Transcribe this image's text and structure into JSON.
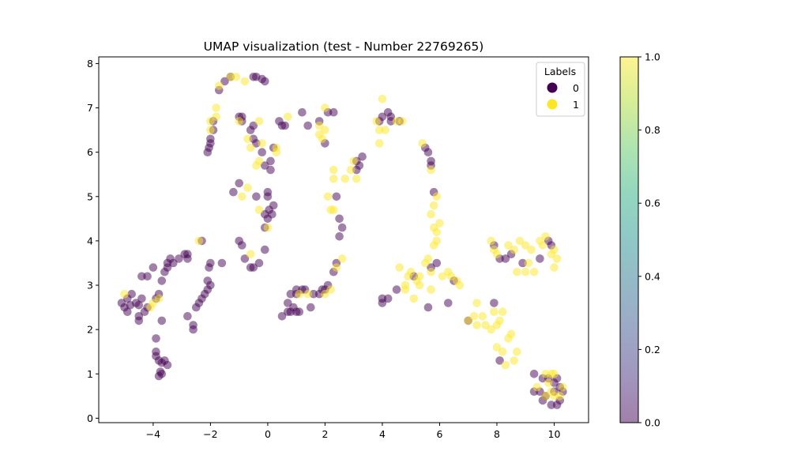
{
  "chart_data": {
    "type": "scatter",
    "title": "UMAP visualization (test - Number 22769265)",
    "xlabel": "",
    "ylabel": "",
    "xlim": [
      -5.9,
      11.2
    ],
    "ylim": [
      -0.1,
      8.15
    ],
    "x_ticks": [
      "−4",
      "−2",
      "0",
      "2",
      "4",
      "6",
      "8",
      "10"
    ],
    "y_ticks": [
      "0",
      "1",
      "2",
      "3",
      "4",
      "5",
      "6",
      "7",
      "8"
    ],
    "legend": {
      "title": "Labels",
      "placement": "top-right",
      "entries": [
        {
          "label": "0",
          "color": "#440154"
        },
        {
          "label": "1",
          "color": "#fde725"
        }
      ]
    },
    "colorbar": {
      "range": [
        0.0,
        1.0
      ],
      "ticks": [
        "0.0",
        "0.2",
        "0.4",
        "0.6",
        "0.8",
        "1.0"
      ],
      "colormap": "viridis",
      "alpha": 0.5
    },
    "series": [
      {
        "name": "0",
        "color": "#440154",
        "points": [
          [
            -5.1,
            2.6
          ],
          [
            -5.0,
            2.5
          ],
          [
            -4.9,
            2.4
          ],
          [
            -4.9,
            2.7
          ],
          [
            -4.8,
            2.55
          ],
          [
            -4.75,
            2.8
          ],
          [
            -4.6,
            2.6
          ],
          [
            -4.5,
            2.55
          ],
          [
            -4.5,
            2.3
          ],
          [
            -4.5,
            2.2
          ],
          [
            -4.4,
            2.7
          ],
          [
            -4.3,
            2.4
          ],
          [
            -4.2,
            2.5
          ],
          [
            -4.4,
            3.2
          ],
          [
            -4.2,
            3.2
          ],
          [
            -4.0,
            3.4
          ],
          [
            -3.9,
            2.7
          ],
          [
            -3.8,
            2.8
          ],
          [
            -3.7,
            2.2
          ],
          [
            -3.7,
            3.1
          ],
          [
            -3.6,
            3.3
          ],
          [
            -3.5,
            3.4
          ],
          [
            -3.5,
            3.5
          ],
          [
            -3.4,
            3.6
          ],
          [
            -3.3,
            3.5
          ],
          [
            -3.1,
            3.6
          ],
          [
            -2.9,
            3.7
          ],
          [
            -2.8,
            3.7
          ],
          [
            -2.8,
            3.6
          ],
          [
            -2.8,
            2.3
          ],
          [
            -2.6,
            2.1
          ],
          [
            -2.6,
            2.0
          ],
          [
            -2.5,
            2.5
          ],
          [
            -2.4,
            2.6
          ],
          [
            -2.3,
            2.7
          ],
          [
            -2.2,
            2.8
          ],
          [
            -2.1,
            2.9
          ],
          [
            -2.1,
            3.1
          ],
          [
            -2.05,
            3.4
          ],
          [
            -2.0,
            3.5
          ],
          [
            -2.0,
            3.0
          ],
          [
            -3.9,
            1.8
          ],
          [
            -3.9,
            1.5
          ],
          [
            -3.9,
            1.4
          ],
          [
            -3.8,
            1.3
          ],
          [
            -3.7,
            1.25
          ],
          [
            -3.6,
            1.3
          ],
          [
            -3.5,
            1.2
          ],
          [
            -3.7,
            1.0
          ],
          [
            -3.8,
            0.95
          ],
          [
            -3.75,
            1.05
          ],
          [
            -2.3,
            4.0
          ],
          [
            -1.6,
            3.5
          ],
          [
            -1.2,
            5.1
          ],
          [
            -1.0,
            5.3
          ],
          [
            -1.0,
            4.0
          ],
          [
            -0.9,
            3.9
          ],
          [
            -0.8,
            3.6
          ],
          [
            -0.6,
            3.4
          ],
          [
            -0.5,
            3.4
          ],
          [
            -0.3,
            3.5
          ],
          [
            -0.1,
            3.8
          ],
          [
            -0.1,
            4.3
          ],
          [
            -0.4,
            5.0
          ],
          [
            -0.1,
            4.6
          ],
          [
            0.0,
            4.5
          ],
          [
            0.05,
            4.7
          ],
          [
            0.15,
            4.6
          ],
          [
            0.2,
            4.8
          ],
          [
            0.0,
            5.0
          ],
          [
            0.0,
            5.1
          ],
          [
            0.1,
            5.6
          ],
          [
            -0.1,
            5.7
          ],
          [
            -0.2,
            6.0
          ],
          [
            0.1,
            5.8
          ],
          [
            0.2,
            6.1
          ],
          [
            -0.6,
            6.5
          ],
          [
            -0.5,
            6.3
          ],
          [
            -0.4,
            6.2
          ],
          [
            -0.5,
            6.6
          ],
          [
            -0.9,
            6.7
          ],
          [
            -0.9,
            6.8
          ],
          [
            -1.0,
            6.8
          ],
          [
            -2.1,
            6.0
          ],
          [
            -2.05,
            6.1
          ],
          [
            -2.0,
            6.2
          ],
          [
            -2.0,
            6.3
          ],
          [
            -1.9,
            6.5
          ],
          [
            -1.9,
            6.7
          ],
          [
            -1.7,
            7.4
          ],
          [
            -1.5,
            7.6
          ],
          [
            -1.3,
            7.7
          ],
          [
            -0.5,
            7.7
          ],
          [
            -0.4,
            7.7
          ],
          [
            -0.2,
            7.65
          ],
          [
            -0.1,
            7.6
          ],
          [
            0.4,
            6.7
          ],
          [
            0.5,
            6.6
          ],
          [
            0.6,
            6.6
          ],
          [
            1.2,
            6.9
          ],
          [
            1.4,
            6.6
          ],
          [
            1.8,
            6.7
          ],
          [
            2.0,
            6.2
          ],
          [
            2.1,
            6.9
          ],
          [
            2.3,
            6.9
          ],
          [
            2.4,
            5.0
          ],
          [
            2.5,
            4.5
          ],
          [
            2.6,
            4.3
          ],
          [
            2.5,
            4.1
          ],
          [
            2.4,
            3.5
          ],
          [
            2.3,
            3.3
          ],
          [
            2.1,
            3.0
          ],
          [
            2.0,
            2.9
          ],
          [
            1.9,
            2.9
          ],
          [
            1.8,
            2.8
          ],
          [
            1.6,
            2.8
          ],
          [
            1.5,
            2.5
          ],
          [
            1.3,
            2.9
          ],
          [
            1.2,
            2.9
          ],
          [
            1.0,
            2.9
          ],
          [
            1.0,
            2.8
          ],
          [
            0.9,
            2.5
          ],
          [
            0.8,
            2.4
          ],
          [
            0.7,
            2.4
          ],
          [
            0.8,
            2.8
          ],
          [
            0.5,
            2.3
          ],
          [
            0.7,
            2.6
          ],
          [
            1.0,
            2.4
          ],
          [
            1.1,
            2.4
          ],
          [
            3.1,
            5.8
          ],
          [
            3.2,
            5.7
          ],
          [
            3.1,
            5.6
          ],
          [
            3.3,
            5.9
          ],
          [
            3.9,
            6.7
          ],
          [
            4.0,
            6.8
          ],
          [
            4.2,
            6.9
          ],
          [
            4.3,
            6.8
          ],
          [
            4.3,
            6.7
          ],
          [
            4.6,
            6.7
          ],
          [
            4.2,
            2.7
          ],
          [
            4.0,
            2.7
          ],
          [
            4.0,
            2.6
          ],
          [
            4.5,
            2.9
          ],
          [
            5.1,
            3.2
          ],
          [
            5.5,
            6.1
          ],
          [
            5.6,
            6.0
          ],
          [
            5.7,
            5.8
          ],
          [
            5.7,
            5.7
          ],
          [
            5.8,
            5.1
          ],
          [
            5.7,
            3.4
          ],
          [
            5.9,
            3.5
          ],
          [
            5.6,
            2.5
          ],
          [
            6.3,
            2.6
          ],
          [
            6.5,
            3.1
          ],
          [
            7.0,
            2.2
          ],
          [
            7.9,
            3.9
          ],
          [
            8.1,
            3.6
          ],
          [
            8.3,
            3.6
          ],
          [
            8.5,
            3.7
          ],
          [
            8.9,
            3.5
          ],
          [
            9.5,
            3.6
          ],
          [
            9.8,
            4.0
          ],
          [
            9.9,
            3.9
          ],
          [
            7.9,
            2.6
          ],
          [
            8.1,
            1.3
          ],
          [
            9.3,
            1.0
          ],
          [
            9.6,
            0.9
          ],
          [
            9.8,
            0.9
          ],
          [
            10.0,
            0.8
          ],
          [
            10.1,
            0.9
          ],
          [
            10.2,
            0.7
          ],
          [
            10.3,
            0.6
          ],
          [
            10.2,
            0.4
          ],
          [
            10.0,
            0.6
          ],
          [
            9.7,
            0.5
          ],
          [
            9.6,
            0.4
          ],
          [
            9.5,
            0.6
          ],
          [
            9.3,
            0.6
          ],
          [
            10.1,
            0.3
          ],
          [
            9.9,
            0.3
          ]
        ]
      },
      {
        "name": "1",
        "color": "#fde725",
        "points": [
          [
            -5.0,
            2.8
          ],
          [
            -4.1,
            2.5
          ],
          [
            -4.0,
            2.6
          ],
          [
            -3.8,
            2.7
          ],
          [
            -2.4,
            4.0
          ],
          [
            -1.8,
            7.0
          ],
          [
            -1.7,
            7.5
          ],
          [
            -1.1,
            7.7
          ],
          [
            -0.8,
            7.6
          ],
          [
            -1.0,
            6.7
          ],
          [
            -0.7,
            6.3
          ],
          [
            -0.6,
            6.1
          ],
          [
            -0.3,
            6.7
          ],
          [
            -0.2,
            6.2
          ],
          [
            -0.4,
            5.7
          ],
          [
            -0.3,
            5.8
          ],
          [
            -0.9,
            5.0
          ],
          [
            -0.7,
            5.2
          ],
          [
            -0.3,
            4.7
          ],
          [
            0.0,
            4.3
          ],
          [
            0.3,
            6.0
          ],
          [
            0.3,
            6.1
          ],
          [
            -2.0,
            6.5
          ],
          [
            -2.0,
            6.7
          ],
          [
            -1.8,
            6.8
          ],
          [
            -1.3,
            7.7
          ],
          [
            -0.6,
            3.7
          ],
          [
            0.7,
            6.8
          ],
          [
            1.8,
            6.6
          ],
          [
            1.8,
            6.4
          ],
          [
            1.9,
            6.3
          ],
          [
            2.0,
            6.5
          ],
          [
            2.0,
            7.0
          ],
          [
            2.1,
            5.0
          ],
          [
            2.3,
            5.6
          ],
          [
            2.3,
            5.4
          ],
          [
            2.2,
            4.7
          ],
          [
            2.3,
            4.7
          ],
          [
            2.6,
            3.6
          ],
          [
            2.4,
            3.4
          ],
          [
            2.0,
            2.8
          ],
          [
            2.2,
            2.9
          ],
          [
            1.1,
            2.8
          ],
          [
            1.4,
            2.8
          ],
          [
            2.7,
            5.4
          ],
          [
            2.9,
            5.6
          ],
          [
            3.1,
            5.4
          ],
          [
            3.0,
            5.8
          ],
          [
            3.8,
            6.7
          ],
          [
            3.9,
            6.5
          ],
          [
            4.0,
            7.2
          ],
          [
            4.1,
            6.5
          ],
          [
            4.5,
            6.7
          ],
          [
            4.7,
            6.7
          ],
          [
            3.9,
            6.2
          ],
          [
            4.6,
            3.4
          ],
          [
            4.8,
            3.0
          ],
          [
            4.9,
            3.2
          ],
          [
            4.8,
            2.9
          ],
          [
            5.0,
            3.3
          ],
          [
            5.2,
            3.1
          ],
          [
            5.3,
            3.0
          ],
          [
            5.1,
            2.7
          ],
          [
            5.3,
            3.2
          ],
          [
            5.4,
            6.2
          ],
          [
            5.5,
            3.5
          ],
          [
            5.6,
            3.6
          ],
          [
            5.7,
            3.3
          ],
          [
            5.7,
            2.9
          ],
          [
            5.8,
            3.9
          ],
          [
            5.9,
            4.0
          ],
          [
            5.8,
            4.3
          ],
          [
            5.7,
            4.6
          ],
          [
            5.9,
            4.2
          ],
          [
            6.0,
            4.4
          ],
          [
            5.8,
            4.8
          ],
          [
            5.9,
            5.0
          ],
          [
            5.7,
            5.6
          ],
          [
            6.1,
            3.2
          ],
          [
            6.3,
            3.3
          ],
          [
            6.4,
            3.2
          ],
          [
            6.6,
            3.1
          ],
          [
            6.7,
            3.0
          ],
          [
            7.0,
            2.2
          ],
          [
            7.2,
            2.3
          ],
          [
            7.3,
            2.1
          ],
          [
            7.5,
            2.3
          ],
          [
            7.6,
            2.1
          ],
          [
            7.8,
            2.0
          ],
          [
            7.9,
            2.4
          ],
          [
            8.0,
            2.1
          ],
          [
            8.1,
            2.2
          ],
          [
            8.2,
            2.4
          ],
          [
            8.4,
            1.8
          ],
          [
            8.5,
            1.9
          ],
          [
            8.0,
            1.6
          ],
          [
            8.2,
            1.5
          ],
          [
            8.3,
            1.2
          ],
          [
            8.6,
            1.3
          ],
          [
            8.7,
            1.5
          ],
          [
            7.3,
            2.6
          ],
          [
            7.8,
            4.0
          ],
          [
            7.9,
            3.8
          ],
          [
            8.0,
            3.7
          ],
          [
            8.4,
            3.9
          ],
          [
            8.6,
            3.8
          ],
          [
            8.8,
            4.0
          ],
          [
            9.0,
            3.9
          ],
          [
            9.2,
            3.8
          ],
          [
            9.1,
            3.5
          ],
          [
            9.3,
            3.3
          ],
          [
            9.0,
            3.3
          ],
          [
            8.7,
            3.3
          ],
          [
            9.5,
            4.0
          ],
          [
            9.7,
            4.1
          ],
          [
            9.6,
            3.9
          ],
          [
            10.0,
            3.8
          ],
          [
            10.1,
            3.6
          ],
          [
            10.0,
            3.4
          ],
          [
            9.9,
            3.7
          ],
          [
            9.4,
            0.7
          ],
          [
            9.7,
            1.0
          ],
          [
            9.9,
            0.6
          ],
          [
            10.0,
            0.5
          ],
          [
            10.2,
            0.5
          ],
          [
            10.3,
            0.7
          ],
          [
            10.0,
            1.0
          ],
          [
            9.9,
            1.0
          ],
          [
            9.8,
            0.8
          ],
          [
            9.7,
            0.5
          ]
        ]
      }
    ]
  }
}
